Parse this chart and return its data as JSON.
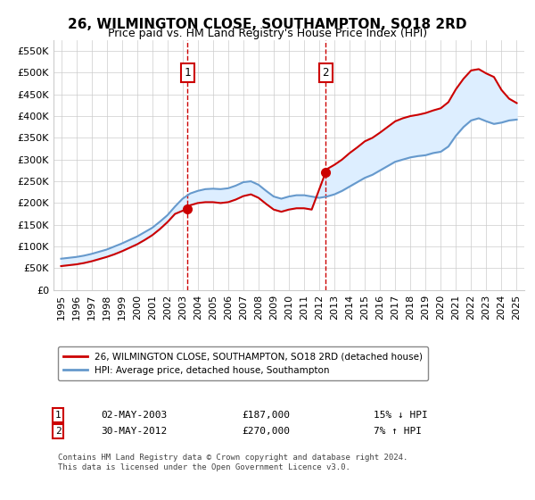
{
  "title": "26, WILMINGTON CLOSE, SOUTHAMPTON, SO18 2RD",
  "subtitle": "Price paid vs. HM Land Registry's House Price Index (HPI)",
  "legend_label_red": "26, WILMINGTON CLOSE, SOUTHAMPTON, SO18 2RD (detached house)",
  "legend_label_blue": "HPI: Average price, detached house, Southampton",
  "footnote": "Contains HM Land Registry data © Crown copyright and database right 2024.\nThis data is licensed under the Open Government Licence v3.0.",
  "sale1_date": "02-MAY-2003",
  "sale1_price": 187000,
  "sale1_label": "15% ↓ HPI",
  "sale2_date": "30-MAY-2012",
  "sale2_price": 270000,
  "sale2_label": "7% ↑ HPI",
  "sale1_x": 2003.33,
  "sale2_x": 2012.41,
  "ylim": [
    0,
    575000
  ],
  "xlim": [
    1994.5,
    2025.5
  ],
  "red_color": "#cc0000",
  "blue_color": "#6699cc",
  "shade_color": "#ddeeff",
  "vline_color": "#cc0000",
  "box_color": "#cc0000",
  "grid_color": "#cccccc",
  "background_color": "#ffffff",
  "hpi_x": [
    1995,
    1995.5,
    1996,
    1996.5,
    1997,
    1997.5,
    1998,
    1998.5,
    1999,
    1999.5,
    2000,
    2000.5,
    2001,
    2001.5,
    2002,
    2002.5,
    2003,
    2003.5,
    2004,
    2004.5,
    2005,
    2005.5,
    2006,
    2006.5,
    2007,
    2007.5,
    2008,
    2008.5,
    2009,
    2009.5,
    2010,
    2010.5,
    2011,
    2011.5,
    2012,
    2012.5,
    2013,
    2013.5,
    2014,
    2014.5,
    2015,
    2015.5,
    2016,
    2016.5,
    2017,
    2017.5,
    2018,
    2018.5,
    2019,
    2019.5,
    2020,
    2020.5,
    2021,
    2021.5,
    2022,
    2022.5,
    2023,
    2023.5,
    2024,
    2024.5,
    2025
  ],
  "hpi_y": [
    72000,
    74000,
    76000,
    79000,
    83000,
    88000,
    93000,
    100000,
    107000,
    115000,
    123000,
    133000,
    143000,
    157000,
    172000,
    192000,
    210000,
    222000,
    228000,
    232000,
    233000,
    232000,
    234000,
    240000,
    248000,
    250000,
    242000,
    228000,
    215000,
    210000,
    215000,
    218000,
    218000,
    215000,
    212000,
    215000,
    220000,
    228000,
    238000,
    248000,
    258000,
    265000,
    275000,
    285000,
    295000,
    300000,
    305000,
    308000,
    310000,
    315000,
    318000,
    330000,
    355000,
    375000,
    390000,
    395000,
    388000,
    382000,
    385000,
    390000,
    392000
  ],
  "red_x": [
    1995,
    1995.5,
    1996,
    1996.5,
    1997,
    1997.5,
    1998,
    1998.5,
    1999,
    1999.5,
    2000,
    2000.5,
    2001,
    2001.5,
    2002,
    2002.5,
    2003.33,
    2003.5,
    2004,
    2004.5,
    2005,
    2005.5,
    2006,
    2006.5,
    2007,
    2007.5,
    2008,
    2008.5,
    2009,
    2009.5,
    2010,
    2010.5,
    2011,
    2011.5,
    2012.41,
    2012.5,
    2013,
    2013.5,
    2014,
    2014.5,
    2015,
    2015.5,
    2016,
    2016.5,
    2017,
    2017.5,
    2018,
    2018.5,
    2019,
    2019.5,
    2020,
    2020.5,
    2021,
    2021.5,
    2022,
    2022.5,
    2023,
    2023.5,
    2024,
    2024.5,
    2025
  ],
  "red_y": [
    55000,
    57000,
    59000,
    62000,
    66000,
    71000,
    76000,
    82000,
    89000,
    97000,
    105000,
    115000,
    126000,
    140000,
    156000,
    175000,
    187000,
    195000,
    200000,
    202000,
    202000,
    200000,
    202000,
    208000,
    216000,
    220000,
    212000,
    198000,
    185000,
    180000,
    185000,
    188000,
    188000,
    185000,
    270000,
    278000,
    288000,
    300000,
    315000,
    328000,
    342000,
    350000,
    362000,
    375000,
    388000,
    395000,
    400000,
    403000,
    407000,
    413000,
    418000,
    432000,
    462000,
    486000,
    505000,
    508000,
    498000,
    490000,
    460000,
    440000,
    430000
  ]
}
